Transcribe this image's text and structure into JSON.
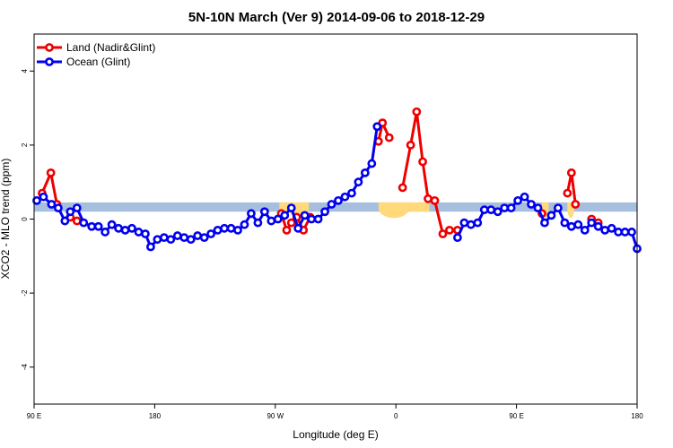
{
  "chart_data": {
    "type": "line",
    "title": "5N-10N March (Ver 9)   2014-09-06 to 2018-12-29",
    "xlabel": "Longitude (deg E)",
    "ylabel": "XCO2 - MLO trend (ppm)",
    "xlim": [
      90,
      540
    ],
    "ylim": [
      -5,
      5
    ],
    "x_ticks": [
      {
        "value": 90,
        "label": "90 E"
      },
      {
        "value": 180,
        "label": "180"
      },
      {
        "value": 270,
        "label": "90 W"
      },
      {
        "value": 360,
        "label": "0"
      },
      {
        "value": 450,
        "label": "90 E"
      },
      {
        "value": 540,
        "label": "180"
      }
    ],
    "y_ticks": [
      {
        "value": -4,
        "label": "-4"
      },
      {
        "value": -2,
        "label": "-2"
      },
      {
        "value": 0,
        "label": "0"
      },
      {
        "value": 2,
        "label": "2"
      },
      {
        "value": 4,
        "label": "4"
      }
    ],
    "grid": false,
    "legend_position": "top-left",
    "land_band": {
      "y_range": [
        0.2,
        0.45
      ],
      "ocean_color": "#a6bfdf",
      "land_color": "#ffd97a",
      "land_segments": [
        [
          273,
          280,
          "flat"
        ],
        [
          280,
          295,
          "dip"
        ],
        [
          347,
          370,
          "dip"
        ],
        [
          370,
          385,
          "flat"
        ],
        [
          469,
          474,
          "dip"
        ],
        [
          488,
          493,
          "dip"
        ]
      ]
    },
    "series": [
      {
        "name": "Land (Nadir&Glint)",
        "color": "#ee0000",
        "segments": [
          [
            [
              96,
              0.7
            ],
            [
              102.5,
              1.25
            ],
            [
              107,
              0.4
            ]
          ],
          [
            [
              117,
              0.05
            ],
            [
              122,
              -0.05
            ]
          ],
          [
            [
              274.5,
              0.15
            ],
            [
              278.5,
              -0.3
            ],
            [
              282,
              -0.1
            ],
            [
              286,
              0.05
            ],
            [
              291,
              -0.3
            ],
            [
              296,
              0.05
            ]
          ],
          [
            [
              347,
              2.1
            ],
            [
              350,
              2.6
            ],
            [
              355,
              2.2
            ]
          ],
          [
            [
              365,
              0.85
            ],
            [
              371,
              2.0
            ],
            [
              375.5,
              2.9
            ],
            [
              380,
              1.55
            ],
            [
              384,
              0.55
            ],
            [
              389,
              0.5
            ],
            [
              395,
              -0.4
            ],
            [
              400,
              -0.3
            ],
            [
              406,
              -0.3
            ]
          ],
          [
            [
              469,
              0.15
            ]
          ],
          [
            [
              488,
              0.7
            ],
            [
              491,
              1.25
            ],
            [
              494,
              0.4
            ]
          ],
          [
            [
              506,
              0.0
            ],
            [
              511,
              -0.1
            ]
          ]
        ]
      },
      {
        "name": "Ocean (Glint)",
        "color": "#0000ee",
        "segments": [
          [
            [
              92,
              0.5
            ],
            [
              97,
              0.6
            ],
            [
              103,
              0.4
            ],
            [
              108,
              0.3
            ],
            [
              113,
              -0.05
            ],
            [
              117,
              0.2
            ],
            [
              122,
              0.3
            ],
            [
              127,
              -0.1
            ],
            [
              133,
              -0.2
            ],
            [
              138,
              -0.2
            ],
            [
              143,
              -0.35
            ],
            [
              148,
              -0.15
            ],
            [
              153,
              -0.25
            ],
            [
              158,
              -0.3
            ],
            [
              163,
              -0.25
            ],
            [
              168,
              -0.35
            ],
            [
              173,
              -0.4
            ],
            [
              177,
              -0.75
            ],
            [
              182,
              -0.55
            ],
            [
              187,
              -0.5
            ],
            [
              192,
              -0.55
            ],
            [
              197,
              -0.45
            ],
            [
              202,
              -0.5
            ],
            [
              207,
              -0.55
            ],
            [
              212,
              -0.45
            ],
            [
              217,
              -0.5
            ],
            [
              222,
              -0.4
            ],
            [
              227,
              -0.3
            ],
            [
              232,
              -0.25
            ],
            [
              237,
              -0.25
            ],
            [
              242,
              -0.3
            ],
            [
              247,
              -0.15
            ],
            [
              252,
              0.15
            ],
            [
              257,
              -0.1
            ],
            [
              262,
              0.2
            ],
            [
              267,
              -0.05
            ],
            [
              272,
              0.0
            ],
            [
              277,
              0.1
            ],
            [
              282,
              0.3
            ],
            [
              287,
              -0.25
            ],
            [
              292,
              0.1
            ],
            [
              297,
              0.0
            ],
            [
              302,
              0.0
            ],
            [
              307,
              0.2
            ],
            [
              312,
              0.4
            ],
            [
              317,
              0.5
            ],
            [
              322,
              0.6
            ],
            [
              327,
              0.7
            ],
            [
              332,
              1.0
            ],
            [
              337,
              1.25
            ],
            [
              342,
              1.5
            ],
            [
              346,
              2.5
            ]
          ],
          [
            [
              406,
              -0.5
            ],
            [
              411,
              -0.1
            ],
            [
              416,
              -0.15
            ],
            [
              421,
              -0.1
            ],
            [
              426,
              0.25
            ],
            [
              431,
              0.25
            ],
            [
              436,
              0.2
            ],
            [
              441,
              0.3
            ],
            [
              446,
              0.3
            ],
            [
              451,
              0.5
            ],
            [
              456,
              0.6
            ],
            [
              461,
              0.4
            ],
            [
              466,
              0.3
            ],
            [
              471,
              -0.1
            ],
            [
              476,
              0.1
            ],
            [
              481,
              0.3
            ],
            [
              486,
              -0.1
            ],
            [
              491,
              -0.2
            ],
            [
              496,
              -0.15
            ],
            [
              501,
              -0.3
            ],
            [
              506,
              -0.1
            ],
            [
              511,
              -0.2
            ],
            [
              516,
              -0.3
            ],
            [
              521,
              -0.25
            ],
            [
              526,
              -0.35
            ],
            [
              531,
              -0.35
            ],
            [
              536,
              -0.35
            ],
            [
              540,
              -0.8
            ]
          ]
        ]
      }
    ]
  }
}
